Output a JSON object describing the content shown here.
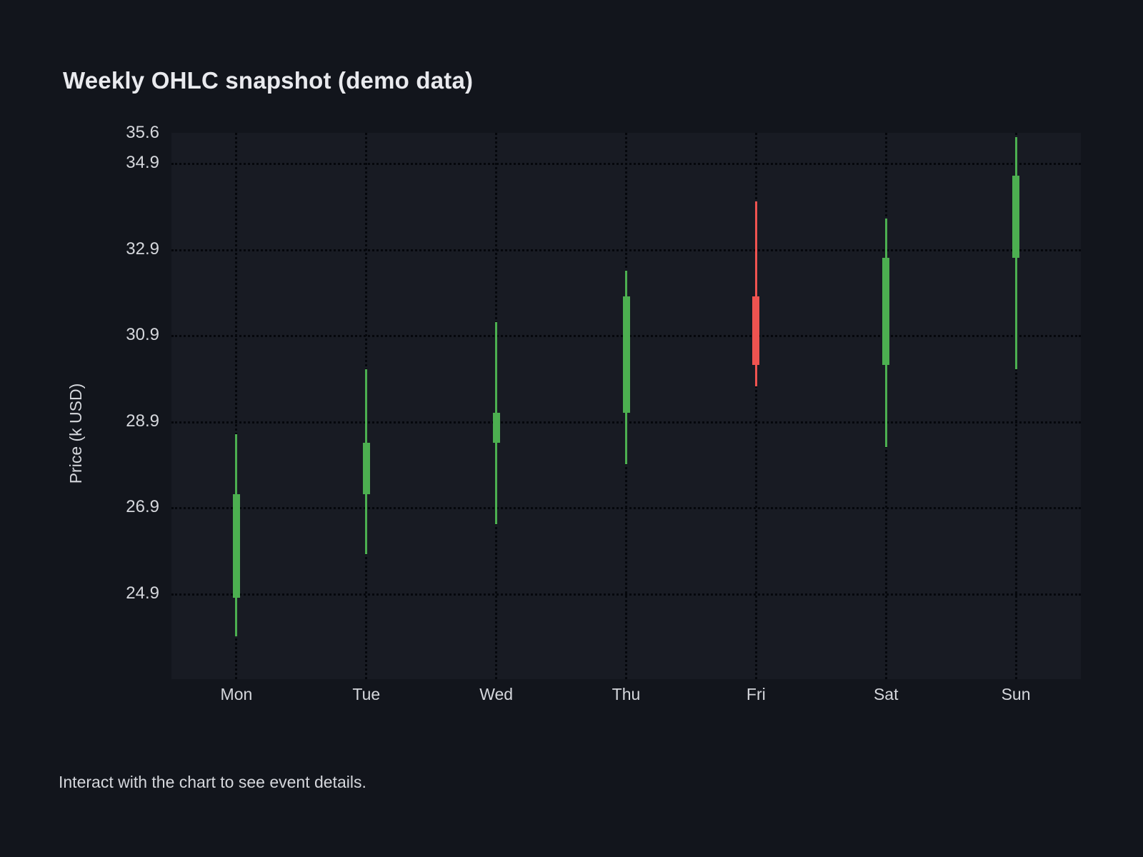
{
  "title": "Weekly OHLC snapshot (demo data)",
  "footer": "Interact with the chart to see event details.",
  "chart_data": {
    "type": "candlestick",
    "title": "Weekly OHLC snapshot (demo data)",
    "xlabel": "",
    "ylabel": "Price (k USD)",
    "categories": [
      "Mon",
      "Tue",
      "Wed",
      "Thu",
      "Fri",
      "Sat",
      "Sun"
    ],
    "series": [
      {
        "name": "OHLC",
        "points": [
          {
            "category": "Mon",
            "open": 24.8,
            "high": 28.6,
            "low": 23.9,
            "close": 27.2
          },
          {
            "category": "Tue",
            "open": 27.2,
            "high": 30.1,
            "low": 25.8,
            "close": 28.4
          },
          {
            "category": "Wed",
            "open": 28.4,
            "high": 31.2,
            "low": 26.5,
            "close": 29.1
          },
          {
            "category": "Thu",
            "open": 29.1,
            "high": 32.4,
            "low": 27.9,
            "close": 31.8
          },
          {
            "category": "Fri",
            "open": 31.8,
            "high": 34.0,
            "low": 29.7,
            "close": 30.2
          },
          {
            "category": "Sat",
            "open": 30.2,
            "high": 33.6,
            "low": 28.3,
            "close": 32.7
          },
          {
            "category": "Sun",
            "open": 32.7,
            "high": 35.5,
            "low": 30.1,
            "close": 34.6
          }
        ]
      }
    ],
    "ylim": [
      22.9,
      35.6
    ],
    "yticks": [
      {
        "label": "35.6",
        "value": 35.6,
        "gridline": false
      },
      {
        "label": "34.9",
        "value": 34.9,
        "gridline": true
      },
      {
        "label": "32.9",
        "value": 32.9,
        "gridline": true
      },
      {
        "label": "30.9",
        "value": 30.9,
        "gridline": true
      },
      {
        "label": "28.9",
        "value": 28.9,
        "gridline": true
      },
      {
        "label": "26.9",
        "value": 26.9,
        "gridline": true
      },
      {
        "label": "24.9",
        "value": 24.9,
        "gridline": true
      }
    ],
    "grid": "dotted",
    "legend": "none",
    "colors": {
      "up": "#4caf50",
      "down": "#ef5350"
    }
  }
}
